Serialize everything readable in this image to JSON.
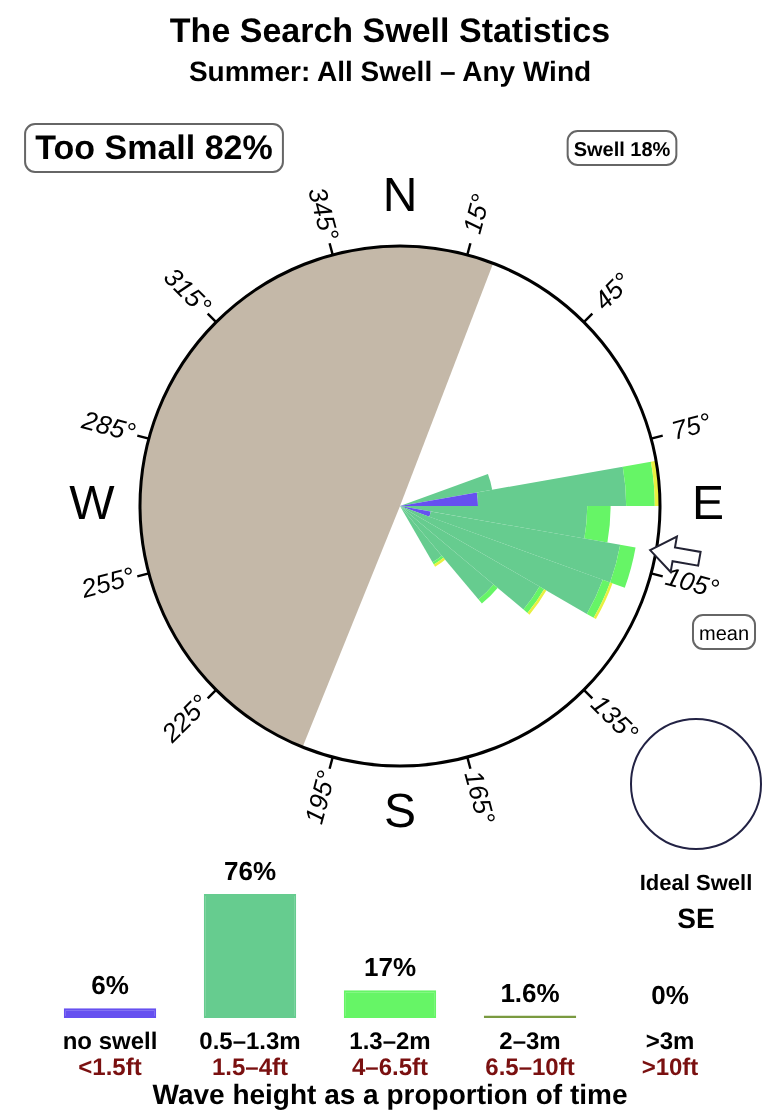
{
  "chart_data": [
    {
      "type": "other",
      "title": "The Search Swell Statistics",
      "subtitle": "Summer: All Swell – Any Wind",
      "annotations": [
        "Too Small 82%",
        "Swell 18%",
        "N",
        "15°",
        "45°",
        "75°",
        "E",
        "105°",
        "135°",
        "165°",
        "S",
        "195°",
        "225°",
        "255°",
        "W",
        "285°",
        "315°",
        "345°",
        "mean",
        "Ideal Swell",
        "SE"
      ]
    },
    {
      "type": "bar",
      "categories": [
        "no swell\n<1.5ft",
        "0.5–1.3m\n1.5–4ft",
        "1.3–2m\n4–6.5ft",
        "2–3m\n6.5–10ft",
        ">3m\n>10ft"
      ],
      "values": [
        6,
        76,
        17,
        1.6,
        0
      ],
      "colors": [
        "#6650f0",
        "#66cc8f",
        "#66f566",
        "#7a9a40",
        "#c8b8b0"
      ],
      "value_labels": [
        "6%",
        "76%",
        "17%",
        "1.6%",
        "0%"
      ],
      "xlabel": "Wave height as a proportion of time"
    }
  ]
}
